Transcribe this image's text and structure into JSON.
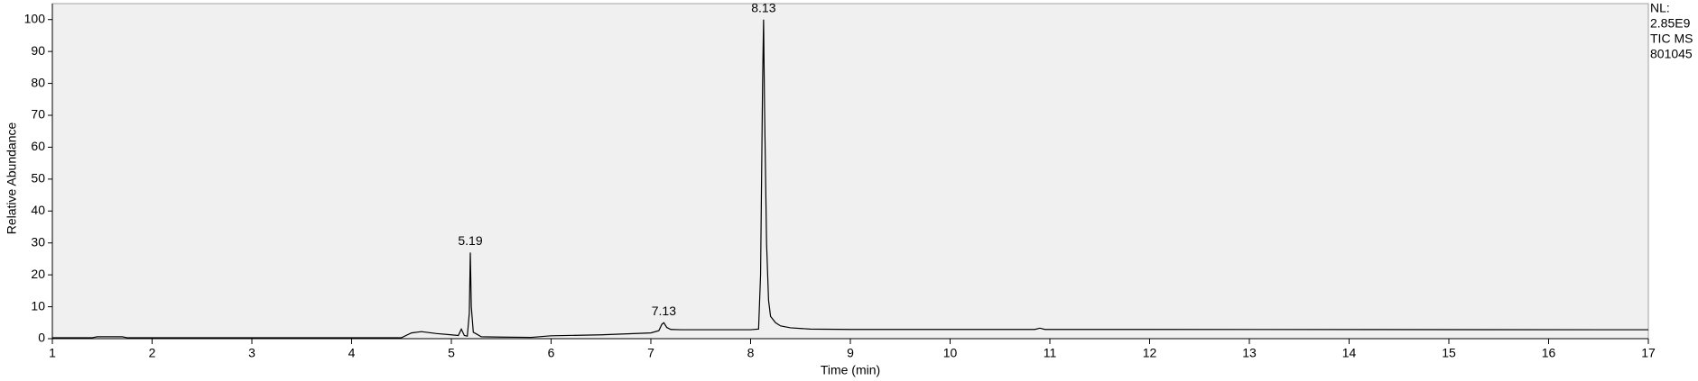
{
  "chart_data": {
    "type": "line",
    "x_label": "Time (min)",
    "y_label": "Relative Abundance",
    "side_text": [
      "NL:",
      "2.85E9",
      "TIC  MS",
      "801045"
    ],
    "x": [
      1,
      1.4,
      1.45,
      1.7,
      1.75,
      4.5,
      4.6,
      4.7,
      4.85,
      5.0,
      5.07,
      5.1,
      5.13,
      5.16,
      5.18,
      5.19,
      5.2,
      5.22,
      5.25,
      5.3,
      5.5,
      5.8,
      6.0,
      6.5,
      7.0,
      7.08,
      7.11,
      7.13,
      7.16,
      7.2,
      7.3,
      8.0,
      8.08,
      8.1,
      8.12,
      8.13,
      8.14,
      8.16,
      8.18,
      8.2,
      8.25,
      8.3,
      8.4,
      8.6,
      9,
      10.85,
      10.9,
      10.95,
      12,
      17
    ],
    "values": [
      0.3,
      0.3,
      0.6,
      0.6,
      0.3,
      0.3,
      1.8,
      2.2,
      1.6,
      1.2,
      1.0,
      3.0,
      1.0,
      0.8,
      8,
      27,
      10,
      2,
      1.5,
      0.6,
      0.5,
      0.4,
      0.9,
      1.2,
      1.8,
      2.5,
      4.5,
      5,
      3.5,
      2.9,
      2.8,
      2.8,
      3,
      20,
      80,
      100,
      72,
      30,
      12,
      7,
      5,
      4,
      3.4,
      3.0,
      2.9,
      2.9,
      3.3,
      2.9,
      2.9,
      2.8
    ],
    "color": "#000000",
    "annotations": [
      {
        "label": "5.19",
        "x": 5.19,
        "y": 27
      },
      {
        "label": "7.13",
        "x": 7.13,
        "y": 5
      },
      {
        "label": "8.13",
        "x": 8.13,
        "y": 100
      }
    ],
    "xlim": [
      1,
      17
    ],
    "xticks": [
      1,
      2,
      3,
      4,
      5,
      6,
      7,
      8,
      9,
      10,
      11,
      12,
      13,
      14,
      15,
      16,
      17
    ],
    "ylim": [
      0,
      105
    ],
    "yticks": [
      0,
      10,
      20,
      30,
      40,
      50,
      60,
      70,
      80,
      90,
      100
    ]
  }
}
